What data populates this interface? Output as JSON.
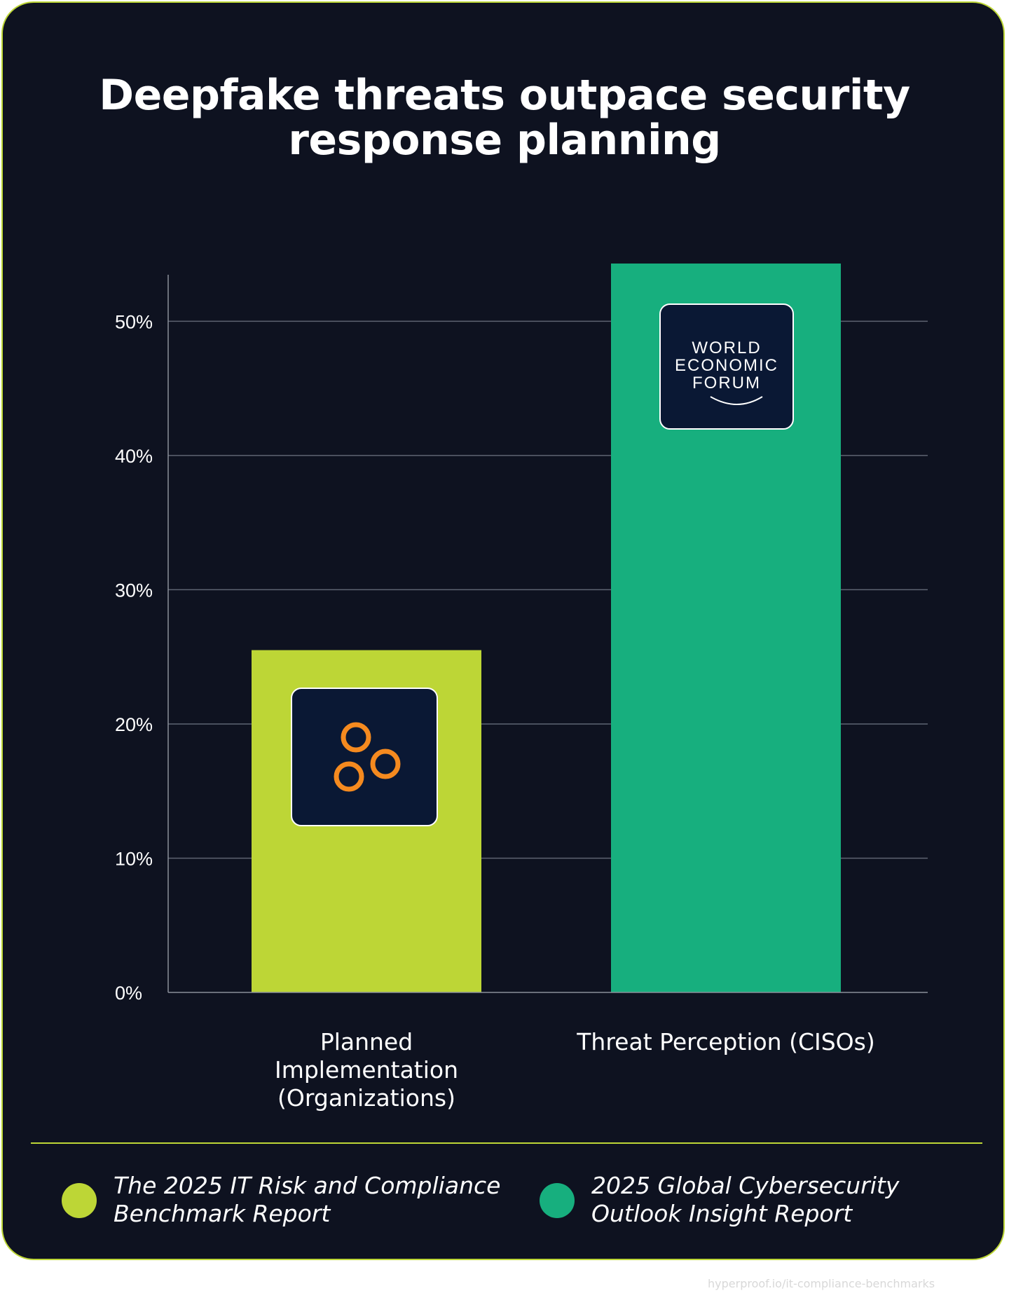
{
  "title": "Deepfake threats outpace security\nresponse planning",
  "chart_data": {
    "type": "bar",
    "categories": [
      "Planned\nImplementation\n(Organizations)",
      "Threat Perception (CISOs)"
    ],
    "values": [
      25.5,
      54.3
    ],
    "colors": [
      "#bdd636",
      "#17af7e"
    ],
    "icons": [
      "orange-circles-logo-icon",
      "world-economic-forum-logo-icon"
    ],
    "ylim": [
      0,
      54.3
    ],
    "yticks": [
      0,
      10,
      20,
      30,
      40,
      50
    ],
    "ytick_labels": [
      "0%",
      "10%",
      "20%",
      "30%",
      "40%",
      "50%"
    ],
    "grid": true,
    "xlabel": "",
    "ylabel": ""
  },
  "logo_text": [
    "WORLD",
    "ECONOMIC",
    "FORUM"
  ],
  "legend": [
    {
      "label": "The 2025 IT Risk and Compliance\nBenchmark Report",
      "color": "#bdd636"
    },
    {
      "label": "2025 Global Cybersecurity\nOutlook Insight Report",
      "color": "#17af7e"
    }
  ],
  "watermark": "hyperproof.io/it-compliance-benchmarks"
}
